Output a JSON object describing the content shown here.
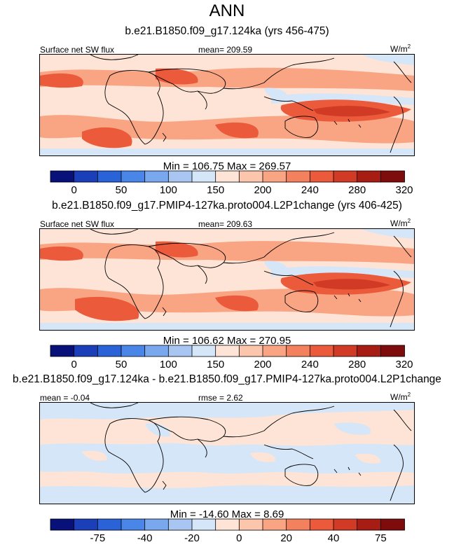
{
  "title": "ANN",
  "panels": [
    {
      "id": "p1",
      "case_title": "b.e21.B1850.f09_g17.124ka (yrs 456-475)",
      "left_label": "Surface net SW flux",
      "center_label": "mean= 209.59",
      "units": "W/m",
      "units_sup": "2",
      "minmax": "Min = 106.75 Max = 269.57",
      "palette": "full",
      "tick_labels": [
        "0",
        "50",
        "100",
        "150",
        "200",
        "240",
        "280",
        "320"
      ],
      "tick_positions": [
        1,
        3,
        5,
        7,
        9,
        11,
        13,
        15
      ]
    },
    {
      "id": "p2",
      "case_title": "b.e21.B1850.f09_g17.PMIP4-127ka.proto004.L2P1change (yrs 406-425)",
      "left_label": "Surface net SW flux",
      "center_label": "mean= 209.63",
      "units": "W/m",
      "units_sup": "2",
      "minmax": "Min = 106.62 Max = 270.95",
      "palette": "full",
      "tick_labels": [
        "0",
        "50",
        "100",
        "150",
        "200",
        "240",
        "280",
        "320"
      ],
      "tick_positions": [
        1,
        3,
        5,
        7,
        9,
        11,
        13,
        15
      ]
    },
    {
      "id": "p3",
      "case_title": "b.e21.B1850.f09_g17.124ka - b.e21.B1850.f09_g17.PMIP4-127ka.proto004.L2P1change",
      "left_label": "mean =  -0.04",
      "center_label": "rmse =  2.62",
      "units": "W/m",
      "units_sup": "2",
      "minmax": "Min = -14.60 Max =  8.69",
      "palette": "diff",
      "tick_labels": [
        "-75",
        "-40",
        "-20",
        "0",
        "20",
        "40",
        "75"
      ],
      "tick_positions": [
        2,
        4,
        6,
        8,
        10,
        12,
        14
      ]
    }
  ],
  "colors": {
    "full": [
      "#08107a",
      "#1b3fb8",
      "#2a62d8",
      "#4a85e8",
      "#7aa8ef",
      "#a9c6f2",
      "#d5e6f8",
      "#fde4d6",
      "#fcc6ad",
      "#f9a584",
      "#f4815e",
      "#ea5a3b",
      "#d13a24",
      "#a71d14",
      "#7e0c0c"
    ],
    "diff": [
      "#08107a",
      "#1b3fb8",
      "#2a62d8",
      "#4a85e8",
      "#7aa8ef",
      "#a9c6f2",
      "#d5e6f8",
      "#fde4d6",
      "#fcc6ad",
      "#f9a584",
      "#f4815e",
      "#ea5a3b",
      "#d13a24",
      "#a71d14",
      "#7e0c0c"
    ],
    "field_low": "#fde4d6",
    "field_mid": "#f9a584",
    "field_high": "#ea5a3b",
    "field_peak": "#d13a24",
    "field_cool": "#d5e6f8",
    "diff_bg": "#fde4d6",
    "diff_neg": "#d5e6f8"
  }
}
